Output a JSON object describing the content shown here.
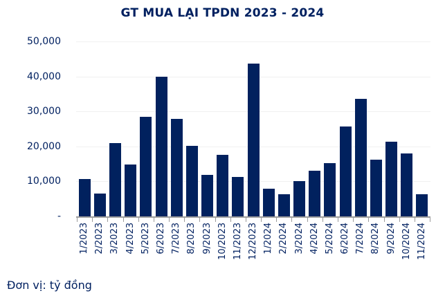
{
  "chart_data": {
    "type": "bar",
    "title": "GT MUA LẠI TPDN 2023 - 2024",
    "unit_note": "Đơn vị: tỷ đồng",
    "categories": [
      "1/2023",
      "2/2023",
      "3/2023",
      "4/2023",
      "5/2023",
      "6/2023",
      "7/2023",
      "8/2023",
      "9/2023",
      "10/2023",
      "11/2023",
      "12/2023",
      "1/2024",
      "2/2024",
      "3/2024",
      "4/2024",
      "5/2024",
      "6/2024",
      "7/2024",
      "8/2024",
      "9/2024",
      "10/2024",
      "11/2024"
    ],
    "values": [
      10600,
      6600,
      21000,
      14900,
      28400,
      40000,
      27800,
      20200,
      11900,
      17600,
      11300,
      43600,
      8000,
      6400,
      10000,
      13000,
      15300,
      25700,
      33600,
      16200,
      21300,
      17900,
      6300
    ],
    "ylim": [
      0,
      50000
    ],
    "ytick_step": 10000,
    "ytick_labels": [
      "-",
      "10,000",
      "20,000",
      "30,000",
      "40,000",
      "50,000"
    ],
    "grid": true,
    "legend": "none",
    "bar_color": "#01215E",
    "text_color": "#002060",
    "gridline_color": "#f0f0f0",
    "axis_color": "#9b9b9b"
  }
}
